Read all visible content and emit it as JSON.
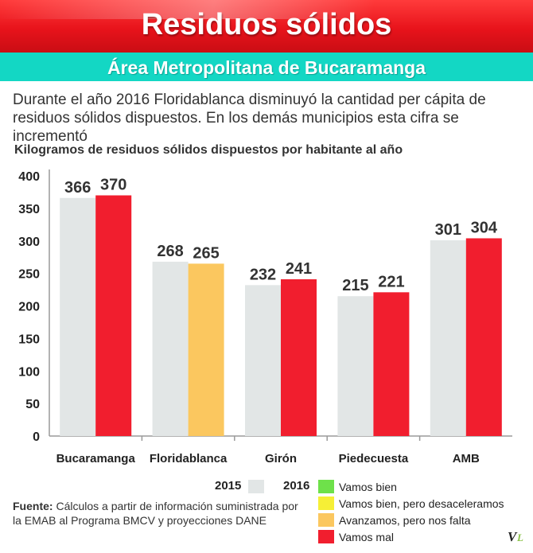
{
  "header": {
    "title": "Residuos sólidos",
    "subtitle": "Área Metropolitana de Bucaramanga"
  },
  "description": "Durante el año 2016 Floridablanca disminuyó la cantidad per cápita de residuos sólidos dispuestos. En los demás municipios esta cifra se incrementó",
  "chart_heading": "Kilogramos de residuos sólidos dispuestos por habitante al año",
  "colors": {
    "year_2015": "#e2e6e6",
    "vamos_bien": "#6ee14a",
    "desaceleramos": "#f6ef36",
    "nos_falta": "#fbc75f",
    "vamos_mal": "#f11e2e"
  },
  "chart_data": {
    "type": "bar",
    "title": "Kilogramos de residuos sólidos dispuestos por habitante al año",
    "xlabel": "",
    "ylabel": "",
    "ylim": [
      0,
      400
    ],
    "yticks": [
      0,
      50,
      100,
      150,
      200,
      250,
      300,
      350,
      400
    ],
    "grid": false,
    "categories": [
      "Bucaramanga",
      "Floridablanca",
      "Girón",
      "Piedecuesta",
      "AMB"
    ],
    "series": [
      {
        "name": "2015",
        "values": [
          366,
          268,
          232,
          215,
          301
        ]
      },
      {
        "name": "2016",
        "values": [
          370,
          265,
          241,
          221,
          304
        ]
      }
    ],
    "status_2016": [
      "Vamos mal",
      "Avanzamos, pero nos falta",
      "Vamos mal",
      "Vamos mal",
      "Vamos mal"
    ]
  },
  "legend": {
    "years": [
      "2015",
      "2016"
    ],
    "status": [
      {
        "label": "Vamos bien",
        "color": "#6ee14a"
      },
      {
        "label": "Vamos bien, pero desaceleramos",
        "color": "#f6ef36"
      },
      {
        "label": "Avanzamos, pero nos falta",
        "color": "#fbc75f"
      },
      {
        "label": "Vamos mal",
        "color": "#f11e2e"
      }
    ]
  },
  "source": {
    "label": "Fuente:",
    "text": "Cálculos a partir de información suministrada por la EMAB al Programa BMCV y proyecciones DANE"
  },
  "logo_text": {
    "v": "V",
    "l": "L"
  }
}
